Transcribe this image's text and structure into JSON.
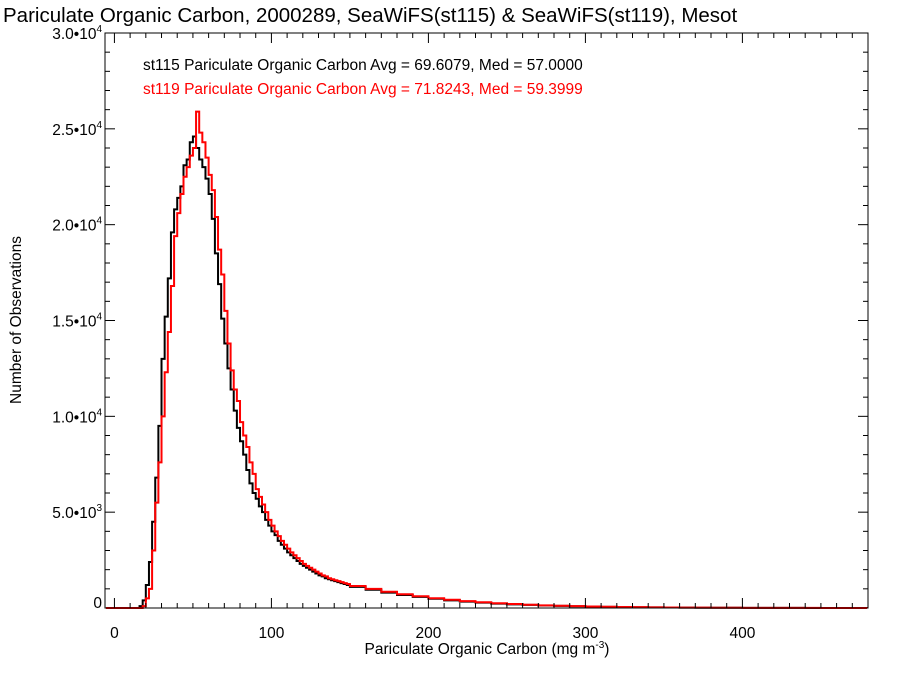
{
  "chart_data": {
    "type": "histogram-step",
    "title": "Pariculate Organic Carbon, 2000289, SeaWiFS(st115) & SeaWiFS(st119), Mesot",
    "xlabel": "Pariculate Organic Carbon (mg m",
    "xlabel_exponent": "-3",
    "xlabel_suffix": ")",
    "ylabel": "Number of Observations",
    "xlim": [
      -6,
      480
    ],
    "ylim": [
      0,
      30000
    ],
    "x_ticks": [
      0,
      100,
      200,
      300,
      400
    ],
    "x_tick_labels": [
      "0",
      "100",
      "200",
      "300",
      "400"
    ],
    "x_minor_step": 10,
    "y_ticks": [
      0,
      5000,
      10000,
      15000,
      20000,
      25000,
      30000
    ],
    "y_tick_labels": [
      {
        "base": "0",
        "exp": ""
      },
      {
        "base": "5.0•10",
        "exp": "3"
      },
      {
        "base": "1.0•10",
        "exp": "4"
      },
      {
        "base": "1.5•10",
        "exp": "4"
      },
      {
        "base": "2.0•10",
        "exp": "4"
      },
      {
        "base": "2.5•10",
        "exp": "4"
      },
      {
        "base": "3.0•10",
        "exp": "4"
      }
    ],
    "y_minor_step": 1000,
    "legend_placement": "top-left",
    "bin_edges_fine": {
      "start": 10,
      "width": 2,
      "count": 70
    },
    "bin_edges_tail": {
      "start": 150,
      "width": 10,
      "count": 33
    },
    "series": [
      {
        "name": "st115",
        "label": "st115 Pariculate Organic Carbon Avg = 69.6079, Med = 57.0000",
        "color": "#000000",
        "fine": [
          0,
          0,
          0,
          100,
          400,
          1200,
          2400,
          4500,
          6800,
          9500,
          13000,
          15200,
          17200,
          19600,
          20800,
          21400,
          22000,
          23100,
          23400,
          24300,
          24600,
          24000,
          23400,
          23000,
          22400,
          21600,
          20300,
          18500,
          16900,
          15100,
          13800,
          12500,
          11400,
          10300,
          9400,
          8700,
          8000,
          7200,
          6500,
          6000,
          5700,
          5300,
          5000,
          4600,
          4300,
          4000,
          3800,
          3500,
          3300,
          3100,
          2900,
          2750,
          2600,
          2450,
          2300,
          2200,
          2100,
          2000,
          1900,
          1800,
          1700,
          1650,
          1550,
          1500,
          1450,
          1400,
          1350,
          1300,
          1250,
          1200
        ],
        "tail": [
          1100,
          950,
          800,
          680,
          580,
          480,
          400,
          330,
          280,
          230,
          190,
          160,
          130,
          110,
          90,
          75,
          60,
          50,
          40,
          30,
          25,
          20,
          15,
          12,
          10,
          8,
          6,
          5,
          4,
          3,
          2,
          2,
          1
        ]
      },
      {
        "name": "st119",
        "label": "st119 Pariculate Organic Carbon Avg = 71.8243, Med = 59.3999",
        "color": "#ff0000",
        "fine": [
          0,
          0,
          0,
          0,
          100,
          500,
          1000,
          3000,
          5500,
          7600,
          10000,
          12300,
          14400,
          16800,
          19400,
          20600,
          21600,
          22500,
          23000,
          23600,
          24000,
          25900,
          24800,
          24300,
          23500,
          22600,
          21800,
          20400,
          18700,
          17400,
          15500,
          13800,
          12400,
          11400,
          10800,
          9700,
          9000,
          8400,
          7600,
          7000,
          6200,
          5800,
          5400,
          5000,
          4600,
          4300,
          4000,
          3750,
          3500,
          3300,
          3100,
          2900,
          2750,
          2600,
          2450,
          2300,
          2200,
          2100,
          2000,
          1900,
          1800,
          1700,
          1650,
          1550,
          1500,
          1450,
          1400,
          1350,
          1300,
          1250
        ],
        "tail": [
          1150,
          1000,
          850,
          720,
          610,
          510,
          430,
          360,
          300,
          250,
          210,
          170,
          140,
          120,
          100,
          80,
          65,
          55,
          45,
          35,
          28,
          22,
          17,
          14,
          11,
          9,
          7,
          6,
          5,
          4,
          3,
          2,
          2
        ]
      }
    ]
  }
}
